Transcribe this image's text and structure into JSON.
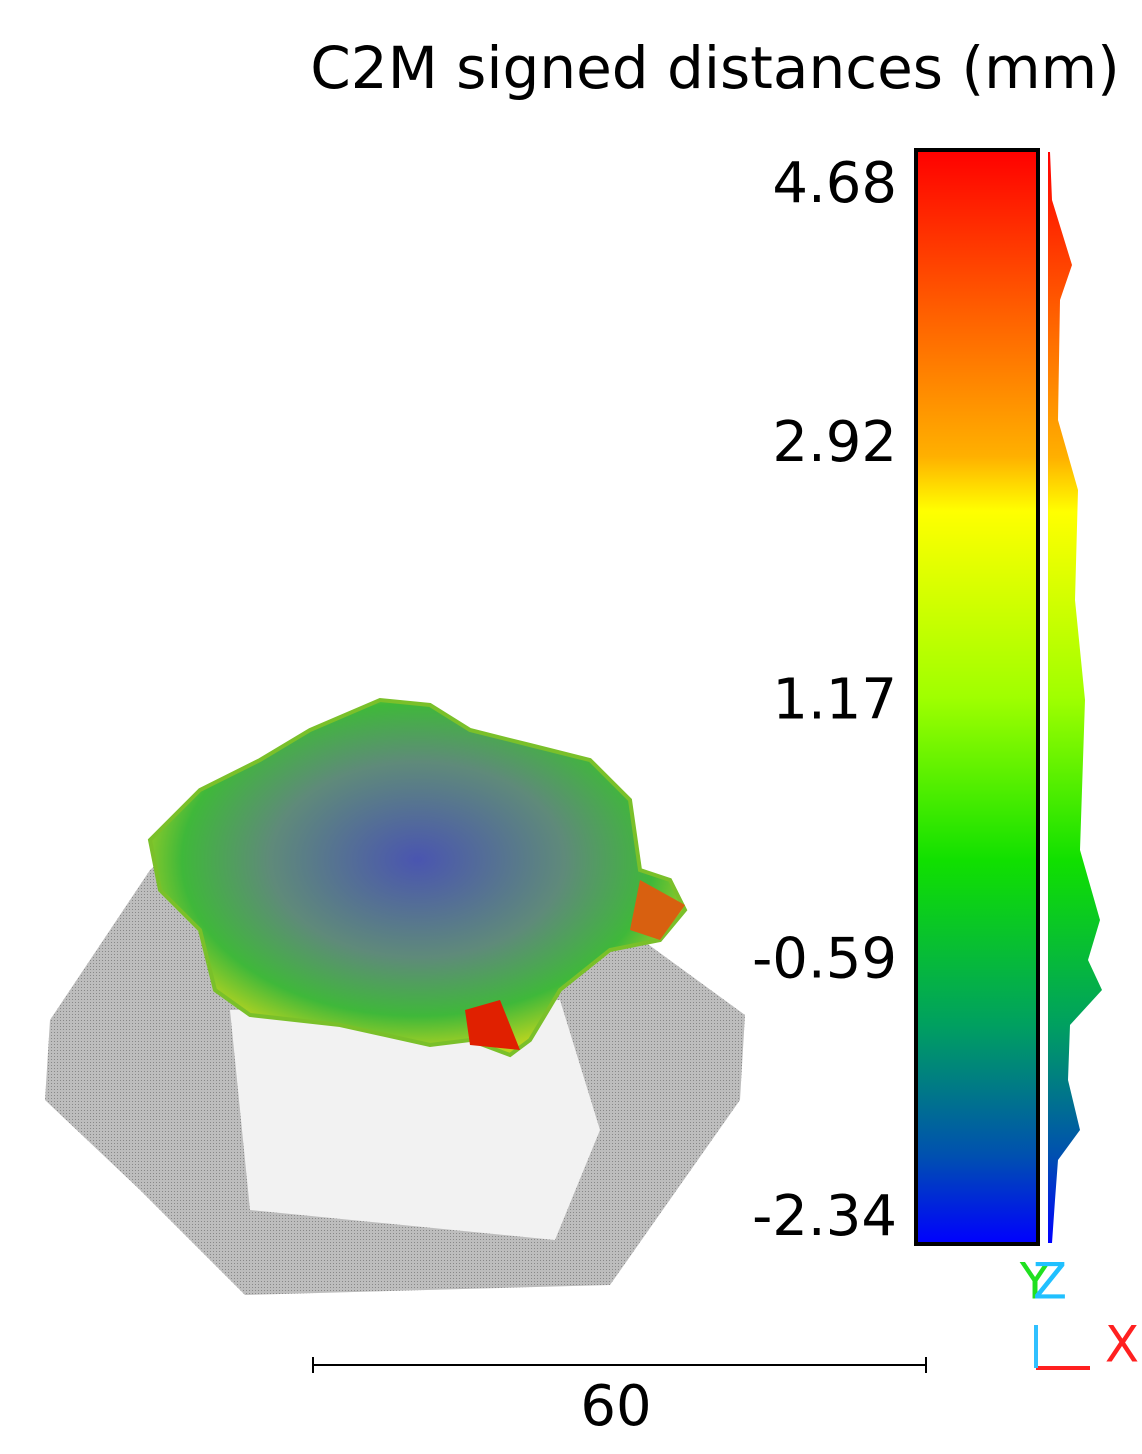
{
  "title": "C2M signed distances (mm)",
  "color_scale": {
    "ticks": [
      4.68,
      2.92,
      1.17,
      -0.59,
      -2.34
    ]
  },
  "scale_bar": {
    "label": "60"
  },
  "axes": {
    "x": "X",
    "y": "Y",
    "z": "Z"
  }
}
